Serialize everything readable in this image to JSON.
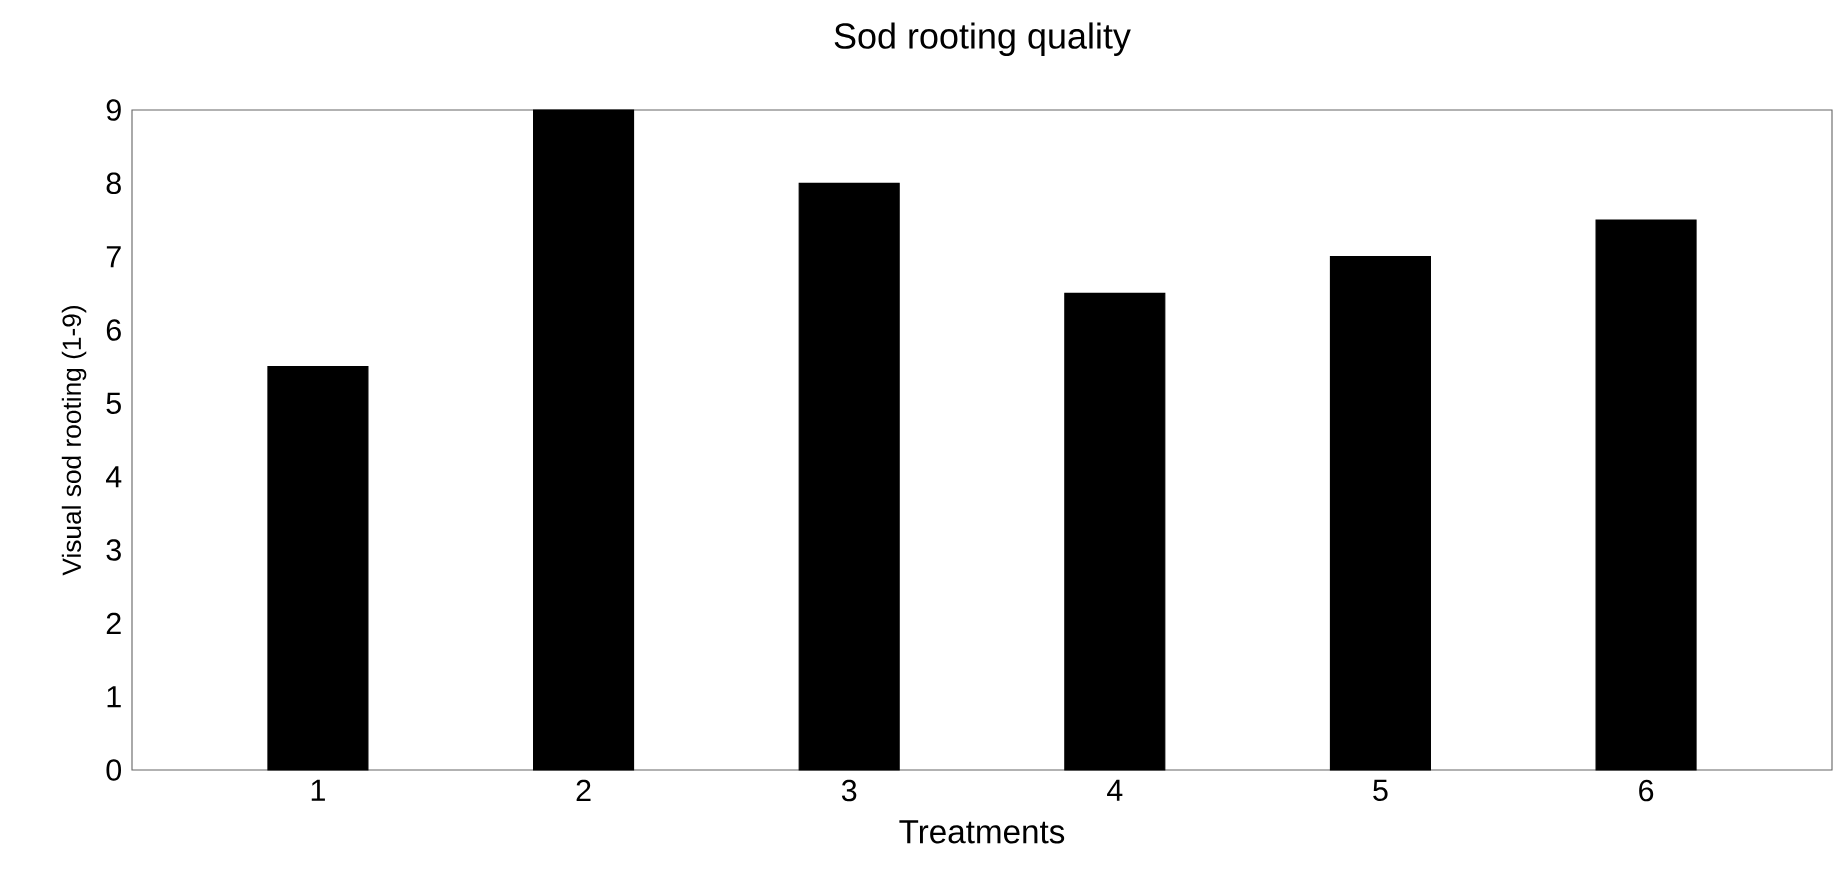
{
  "chart_data": {
    "type": "bar",
    "title": "Sod rooting quality",
    "xlabel": "Treatments",
    "ylabel": "Visual sod rooting (1-9)",
    "categories": [
      "1",
      "2",
      "3",
      "4",
      "5",
      "6"
    ],
    "values": [
      5.5,
      9,
      8,
      6.5,
      7,
      7.5
    ],
    "color": "#000000",
    "ylim": [
      0,
      9
    ],
    "yticks": [
      0,
      1,
      2,
      3,
      4,
      5,
      6,
      7,
      8,
      9
    ],
    "grid": false
  }
}
